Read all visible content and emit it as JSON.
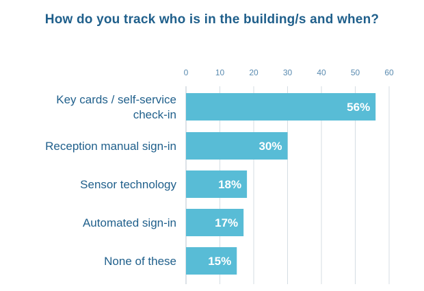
{
  "chart_data": {
    "type": "bar",
    "orientation": "horizontal",
    "title": "How do you track who is in the building/s and when?",
    "categories": [
      [
        "Key cards / self-service",
        "check-in"
      ],
      [
        "Reception manual sign-in"
      ],
      [
        "Sensor technology"
      ],
      [
        "Automated sign-in"
      ],
      [
        "None of these"
      ]
    ],
    "values": [
      56,
      30,
      18,
      17,
      15
    ],
    "data_labels": [
      "56%",
      "30%",
      "18%",
      "17%",
      "15%"
    ],
    "x_ticks": [
      "0",
      "10",
      "20",
      "30",
      "40",
      "50",
      "60"
    ],
    "xlim": [
      0,
      60
    ],
    "xaxis_position": "top",
    "grid": true,
    "xlabel": "",
    "ylabel": ""
  },
  "colors": {
    "bar": "#58bcd6",
    "grid": "#d4dde3",
    "axis_line": "#b9c6cf",
    "title": "#1f5f8b"
  }
}
